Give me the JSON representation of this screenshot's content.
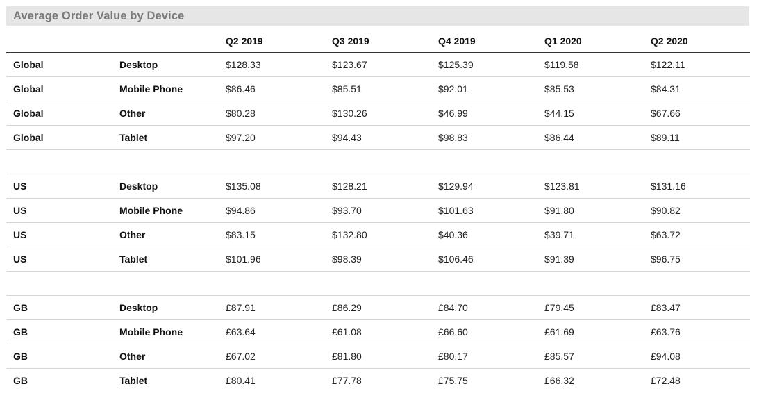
{
  "title": "Average Order Value by Device",
  "chart_data": {
    "type": "table",
    "title": "Average Order Value by Device",
    "columns": [
      "",
      "",
      "Q2 2019",
      "Q3 2019",
      "Q4 2019",
      "Q1 2020",
      "Q2 2020"
    ],
    "groups": [
      {
        "rows": [
          {
            "region": "Global",
            "device": "Desktop",
            "values": [
              "$128.33",
              "$123.67",
              "$125.39",
              "$119.58",
              "$122.11"
            ]
          },
          {
            "region": "Global",
            "device": "Mobile Phone",
            "values": [
              "$86.46",
              "$85.51",
              "$92.01",
              "$85.53",
              "$84.31"
            ]
          },
          {
            "region": "Global",
            "device": "Other",
            "values": [
              "$80.28",
              "$130.26",
              "$46.99",
              "$44.15",
              "$67.66"
            ]
          },
          {
            "region": "Global",
            "device": "Tablet",
            "values": [
              "$97.20",
              "$94.43",
              "$98.83",
              "$86.44",
              "$89.11"
            ]
          }
        ]
      },
      {
        "rows": [
          {
            "region": "US",
            "device": "Desktop",
            "values": [
              "$135.08",
              "$128.21",
              "$129.94",
              "$123.81",
              "$131.16"
            ]
          },
          {
            "region": "US",
            "device": "Mobile Phone",
            "values": [
              "$94.86",
              "$93.70",
              "$101.63",
              "$91.80",
              "$90.82"
            ]
          },
          {
            "region": "US",
            "device": "Other",
            "values": [
              "$83.15",
              "$132.80",
              "$40.36",
              "$39.71",
              "$63.72"
            ]
          },
          {
            "region": "US",
            "device": "Tablet",
            "values": [
              "$101.96",
              "$98.39",
              "$106.46",
              "$91.39",
              "$96.75"
            ]
          }
        ]
      },
      {
        "rows": [
          {
            "region": "GB",
            "device": "Desktop",
            "values": [
              "£87.91",
              "£86.29",
              "£84.70",
              "£79.45",
              "£83.47"
            ]
          },
          {
            "region": "GB",
            "device": "Mobile Phone",
            "values": [
              "£63.64",
              "£61.08",
              "£66.60",
              "£61.69",
              "£63.76"
            ]
          },
          {
            "region": "GB",
            "device": "Other",
            "values": [
              "£67.02",
              "£81.80",
              "£80.17",
              "£85.57",
              "£94.08"
            ]
          },
          {
            "region": "GB",
            "device": "Tablet",
            "values": [
              "£80.41",
              "£77.78",
              "£75.75",
              "£66.32",
              "£72.48"
            ]
          }
        ]
      }
    ]
  }
}
